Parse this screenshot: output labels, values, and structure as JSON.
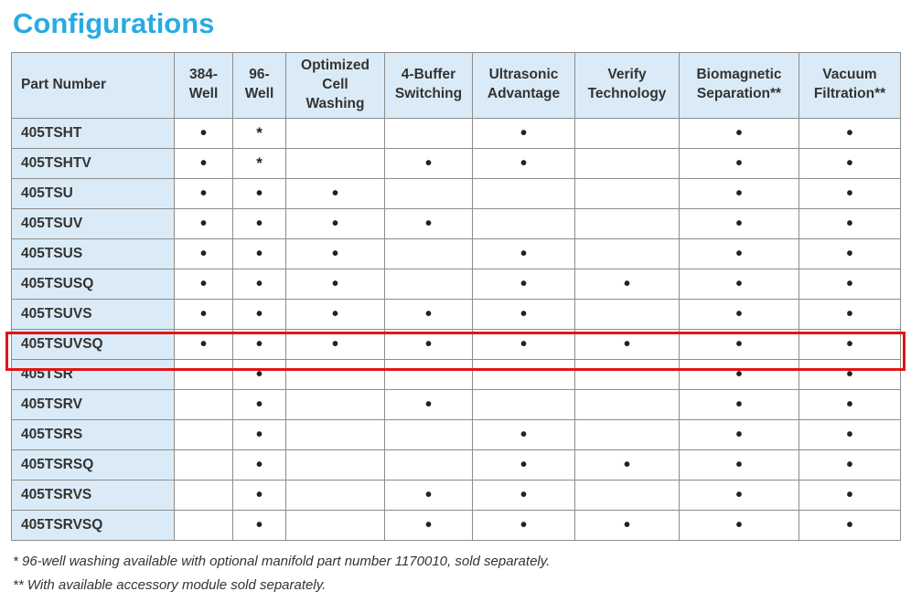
{
  "page": {
    "title": "Configurations"
  },
  "colors": {
    "title_color": "#29ABE2",
    "header_bg": "#DAEBF7",
    "border_color": "#8C8C8C",
    "highlight_color": "#E01616"
  },
  "table": {
    "columns": [
      "Part Number",
      "384-\nWell",
      "96-\nWell",
      "Optimized\nCell\nWashing",
      "4-Buffer\nSwitching",
      "Ultrasonic\nAdvantage",
      "Verify\nTechnology",
      "Biomagnetic\nSeparation**",
      "Vacuum\nFiltration**"
    ],
    "rows": [
      {
        "part_number": "405TSHT",
        "marks": [
          "•",
          "*",
          "",
          "",
          "•",
          "",
          "•",
          "•"
        ],
        "highlighted": false
      },
      {
        "part_number": "405TSHTV",
        "marks": [
          "•",
          "*",
          "",
          "•",
          "•",
          "",
          "•",
          "•"
        ],
        "highlighted": false
      },
      {
        "part_number": "405TSU",
        "marks": [
          "•",
          "•",
          "•",
          "",
          "",
          "",
          "•",
          "•"
        ],
        "highlighted": false
      },
      {
        "part_number": "405TSUV",
        "marks": [
          "•",
          "•",
          "•",
          "•",
          "",
          "",
          "•",
          "•"
        ],
        "highlighted": false
      },
      {
        "part_number": "405TSUS",
        "marks": [
          "•",
          "•",
          "•",
          "",
          "•",
          "",
          "•",
          "•"
        ],
        "highlighted": false
      },
      {
        "part_number": "405TSUSQ",
        "marks": [
          "•",
          "•",
          "•",
          "",
          "•",
          "•",
          "•",
          "•"
        ],
        "highlighted": false
      },
      {
        "part_number": "405TSUVS",
        "marks": [
          "•",
          "•",
          "•",
          "•",
          "•",
          "",
          "•",
          "•"
        ],
        "highlighted": false
      },
      {
        "part_number": "405TSUVSQ",
        "marks": [
          "•",
          "•",
          "•",
          "•",
          "•",
          "•",
          "•",
          "•"
        ],
        "highlighted": true
      },
      {
        "part_number": "405TSR",
        "marks": [
          "",
          "•",
          "",
          "",
          "",
          "",
          "•",
          "•"
        ],
        "highlighted": false
      },
      {
        "part_number": "405TSRV",
        "marks": [
          "",
          "•",
          "",
          "•",
          "",
          "",
          "•",
          "•"
        ],
        "highlighted": false
      },
      {
        "part_number": "405TSRS",
        "marks": [
          "",
          "•",
          "",
          "",
          "•",
          "",
          "•",
          "•"
        ],
        "highlighted": false
      },
      {
        "part_number": "405TSRSQ",
        "marks": [
          "",
          "•",
          "",
          "",
          "•",
          "•",
          "•",
          "•"
        ],
        "highlighted": false
      },
      {
        "part_number": "405TSRVS",
        "marks": [
          "",
          "•",
          "",
          "•",
          "•",
          "",
          "•",
          "•"
        ],
        "highlighted": false
      },
      {
        "part_number": "405TSRVSQ",
        "marks": [
          "",
          "•",
          "",
          "•",
          "•",
          "•",
          "•",
          "•"
        ],
        "highlighted": false
      }
    ]
  },
  "footnotes": [
    "* 96-well washing available with optional manifold part number 1170010, sold separately.",
    "** With available accessory module sold separately."
  ]
}
